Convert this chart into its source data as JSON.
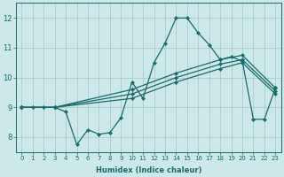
{
  "xlabel": "Humidex (Indice chaleur)",
  "ylabel": "",
  "background_color": "#cce8e8",
  "grid_color": "#aacccc",
  "line_color": "#1a6b6b",
  "xlim": [
    -0.5,
    23.5
  ],
  "ylim": [
    7.5,
    12.5
  ],
  "xticks": [
    0,
    1,
    2,
    3,
    4,
    5,
    6,
    7,
    8,
    9,
    10,
    11,
    12,
    13,
    14,
    15,
    16,
    17,
    18,
    19,
    20,
    21,
    22,
    23
  ],
  "yticks": [
    8,
    9,
    10,
    11,
    12
  ],
  "line1_x": [
    0,
    1,
    2,
    3,
    4,
    5,
    6,
    7,
    8,
    9,
    10,
    11,
    12,
    13,
    14,
    15,
    16,
    17,
    18,
    19,
    20,
    21,
    22,
    23
  ],
  "line1_y": [
    9.0,
    9.0,
    9.0,
    9.0,
    8.85,
    7.75,
    8.25,
    8.1,
    8.15,
    8.65,
    9.85,
    9.3,
    10.5,
    11.15,
    12.0,
    12.0,
    11.5,
    11.1,
    10.6,
    10.7,
    10.55,
    8.6,
    8.6,
    9.65
  ],
  "line2_x": [
    0,
    3,
    10,
    14,
    18,
    20,
    23
  ],
  "line2_y": [
    9.0,
    9.0,
    9.6,
    10.15,
    10.6,
    10.75,
    9.65
  ],
  "line3_x": [
    0,
    3,
    10,
    14,
    18,
    20,
    23
  ],
  "line3_y": [
    9.0,
    9.0,
    9.45,
    10.0,
    10.45,
    10.6,
    9.55
  ],
  "line4_x": [
    0,
    3,
    10,
    14,
    18,
    20,
    23
  ],
  "line4_y": [
    9.0,
    9.0,
    9.3,
    9.85,
    10.3,
    10.5,
    9.45
  ]
}
